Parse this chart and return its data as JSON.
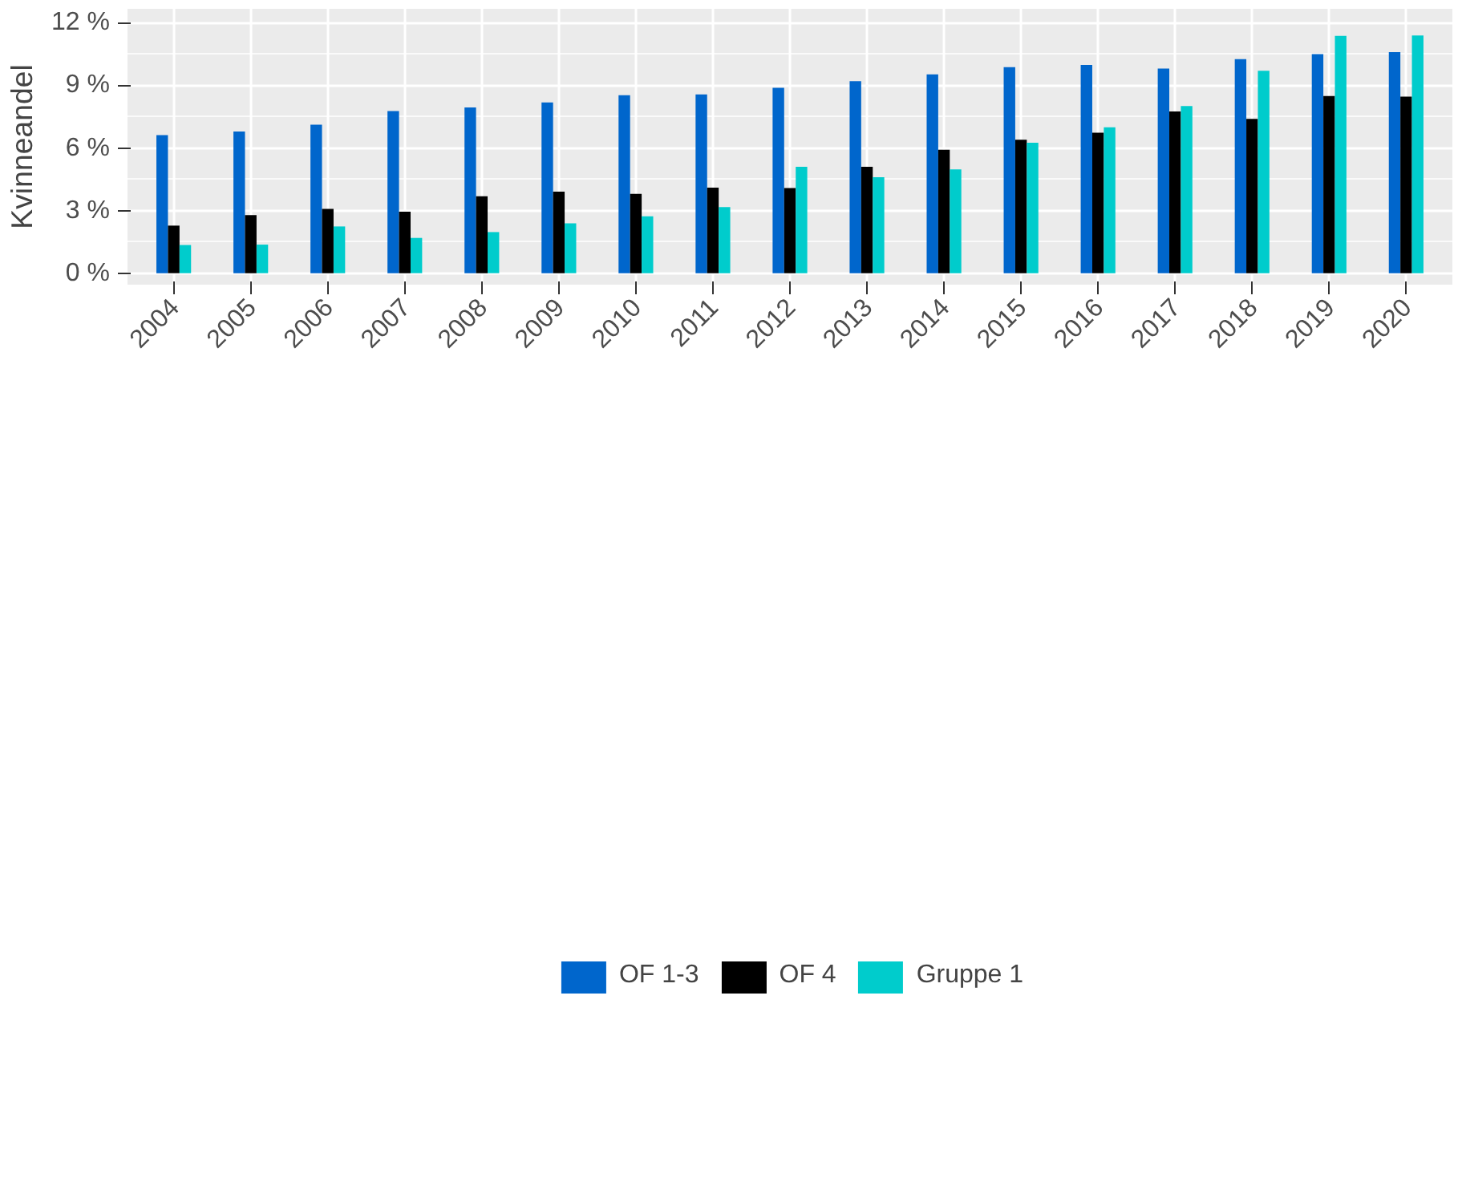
{
  "chart_data": {
    "type": "bar",
    "ylabel": "Kvinneandel",
    "categories": [
      "2004",
      "2005",
      "2006",
      "2007",
      "2008",
      "2009",
      "2010",
      "2011",
      "2012",
      "2013",
      "2014",
      "2015",
      "2016",
      "2017",
      "2018",
      "2019",
      "2020"
    ],
    "series": [
      {
        "name": "OF 1-3",
        "color": "#0066cc",
        "values": [
          6.62,
          6.79,
          7.12,
          7.77,
          7.94,
          8.18,
          8.53,
          8.57,
          8.88,
          9.2,
          9.53,
          9.87,
          9.98,
          9.81,
          10.26,
          10.5,
          10.59
        ]
      },
      {
        "name": "OF 4",
        "color": "#000000",
        "values": [
          2.28,
          2.78,
          3.08,
          2.95,
          3.69,
          3.91,
          3.8,
          4.1,
          4.08,
          5.1,
          5.92,
          6.4,
          6.73,
          7.75,
          7.4,
          8.49,
          8.46
        ]
      },
      {
        "name": "Gruppe 1",
        "color": "#00cccc",
        "values": [
          1.35,
          1.37,
          2.24,
          1.69,
          1.97,
          2.39,
          2.73,
          3.17,
          5.1,
          4.6,
          4.97,
          6.25,
          6.99,
          8.01,
          9.7,
          11.37,
          11.39
        ]
      }
    ],
    "ylim": [
      -0.55,
      12.67
    ],
    "yticks": [
      {
        "value": 0,
        "label": "0 %"
      },
      {
        "value": 3,
        "label": "3 %"
      },
      {
        "value": 6,
        "label": "6 %"
      },
      {
        "value": 9,
        "label": "9 %"
      },
      {
        "value": 12,
        "label": "12 %"
      }
    ],
    "grid": true,
    "legend": "bottom"
  }
}
